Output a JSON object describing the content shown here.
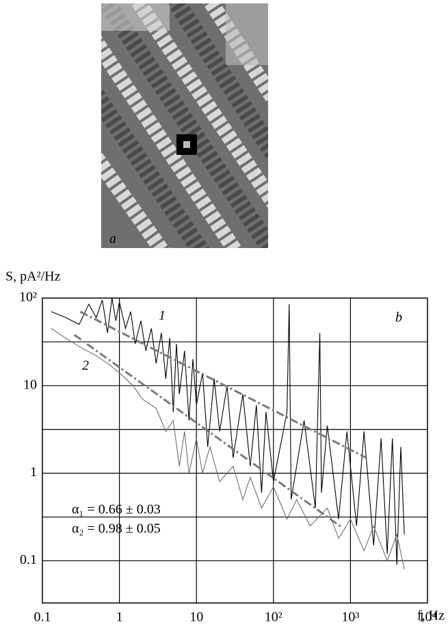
{
  "panel_a_label": "a",
  "chart_data": {
    "type": "line",
    "panel_label": "b",
    "y_label": "S, pA²/Hz",
    "x_label": "f, Hz",
    "log_x": true,
    "log_y": true,
    "grid": true,
    "xlim": [
      0.1,
      10000
    ],
    "ylim": [
      0.033,
      100
    ],
    "xticks": [
      0.1,
      1,
      10,
      {
        "value": 100,
        "label": "10²"
      },
      {
        "value": 1000,
        "label": "10³"
      },
      {
        "value": 10000,
        "label": "10⁴"
      }
    ],
    "yticks": [
      0.1,
      1,
      10,
      {
        "value": 100,
        "label": "10²"
      }
    ],
    "xgrid": [
      1,
      10,
      100,
      1000
    ],
    "ygrid": [
      0.1,
      0.316,
      1,
      3.16,
      10,
      31.6
    ],
    "series": [
      {
        "name": "1",
        "color": "#000000",
        "x": [
          0.13,
          0.2,
          0.3,
          0.4,
          0.5,
          0.6,
          0.7,
          0.8,
          0.9,
          1.0,
          1.2,
          1.4,
          1.6,
          1.9,
          2.2,
          2.6,
          3,
          3.5,
          4,
          4.5,
          5,
          5.5,
          6,
          7,
          8,
          9,
          10,
          12,
          14,
          17,
          20,
          25,
          30,
          40,
          50,
          60,
          70,
          80,
          100,
          150,
          160,
          170,
          250,
          350,
          400,
          420,
          500,
          700,
          900,
          1200,
          1500,
          2000,
          2500,
          3000,
          3500,
          4000,
          4500,
          5000
        ],
        "values": [
          70,
          60,
          50,
          85,
          60,
          95,
          40,
          100,
          55,
          90,
          45,
          70,
          30,
          55,
          25,
          45,
          18,
          40,
          12,
          35,
          5,
          30,
          8,
          25,
          4,
          20,
          6,
          14,
          2,
          12,
          3,
          10,
          1.5,
          8,
          1.2,
          6,
          0.6,
          5,
          0.8,
          5,
          85,
          0.5,
          4,
          0.4,
          40,
          0.6,
          3.5,
          0.3,
          3,
          0.25,
          3,
          0.15,
          2.5,
          0.12,
          2.5,
          0.09,
          2,
          0.2
        ]
      },
      {
        "name": "2",
        "color": "#6e6e6e",
        "x": [
          0.13,
          0.2,
          0.3,
          0.5,
          0.7,
          1,
          1.5,
          2,
          3,
          4,
          5,
          6,
          7,
          8,
          10,
          12,
          15,
          20,
          30,
          40,
          50,
          70,
          100,
          150,
          200,
          300,
          500,
          700,
          1000,
          1500,
          2000,
          3000,
          4000,
          5000
        ],
        "values": [
          45,
          35,
          28,
          22,
          18,
          14,
          10,
          7,
          5.5,
          3,
          4,
          1.2,
          3,
          1,
          2.5,
          1,
          2,
          0.8,
          1.2,
          0.5,
          0.9,
          0.4,
          0.7,
          0.3,
          0.5,
          0.25,
          0.4,
          0.18,
          0.3,
          0.13,
          0.25,
          0.1,
          0.2,
          0.08
        ]
      }
    ],
    "fits": [
      {
        "color": "#7a7a7a",
        "x": [
          0.31,
          1600
        ],
        "values": [
          70,
          1.5
        ]
      },
      {
        "color": "#7a7a7a",
        "x": [
          0.26,
          780
        ],
        "values": [
          38,
          0.24
        ]
      }
    ],
    "annotations": [
      "α₁ = 0.66 ± 0.03",
      "α₂ = 0.98 ± 0.05"
    ]
  }
}
